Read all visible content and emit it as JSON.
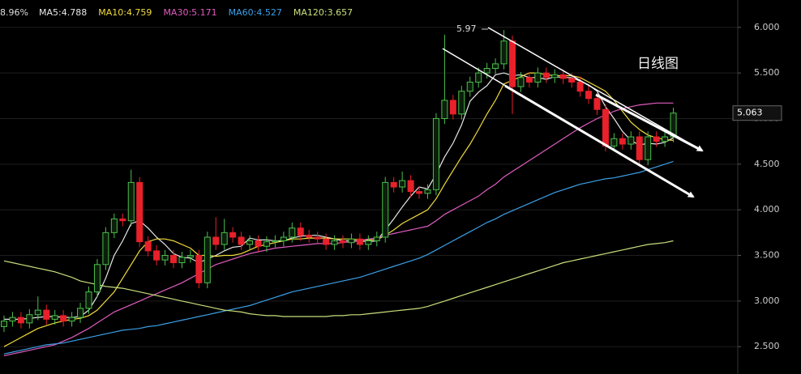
{
  "chart_data": {
    "type": "candlestick",
    "header_change": "8.96%",
    "annotation_high": "5.97",
    "title": "日线图",
    "last_price_label": "5.063",
    "ylim": [
      2.2,
      6.3
    ],
    "yticks": [
      {
        "value": 2.5,
        "label": "2.500"
      },
      {
        "value": 3,
        "label": "3.000"
      },
      {
        "value": 3.5,
        "label": "3.500"
      },
      {
        "value": 4,
        "label": "4.000"
      },
      {
        "value": 4.5,
        "label": "4.500"
      },
      {
        "value": 5,
        "label": "5.000"
      },
      {
        "value": 5.5,
        "label": "5.500"
      },
      {
        "value": 6,
        "label": "6.000"
      }
    ],
    "grid": true,
    "up_color": "#4cbf4c",
    "down_color": "#e8202a",
    "open": [
      2.72,
      2.78,
      2.82,
      2.76,
      2.85,
      2.9,
      2.8,
      2.84,
      2.78,
      2.82,
      2.92,
      3.1,
      3.4,
      3.75,
      3.9,
      3.88,
      4.3,
      3.65,
      3.55,
      3.45,
      3.5,
      3.42,
      3.48,
      3.5,
      3.2,
      3.7,
      3.62,
      3.75,
      3.7,
      3.62,
      3.66,
      3.6,
      3.65,
      3.66,
      3.7,
      3.8,
      3.72,
      3.7,
      3.68,
      3.62,
      3.66,
      3.64,
      3.68,
      3.62,
      3.66,
      3.7,
      4.3,
      4.25,
      4.32,
      4.2,
      4.18,
      4.22,
      5.0,
      5.2,
      5.05,
      5.3,
      5.4,
      5.5,
      5.55,
      5.6,
      5.85,
      5.35,
      5.45,
      5.4,
      5.5,
      5.45,
      5.48,
      5.44,
      5.4,
      5.3,
      5.22,
      5.1,
      4.7,
      4.78,
      4.72,
      4.8,
      4.55,
      4.8,
      4.75,
      4.8
    ],
    "high": [
      2.84,
      2.88,
      2.88,
      2.91,
      3.05,
      2.96,
      2.9,
      2.9,
      2.88,
      2.98,
      3.16,
      3.46,
      3.81,
      3.96,
      3.96,
      4.44,
      4.36,
      3.71,
      3.61,
      3.56,
      3.56,
      3.54,
      3.56,
      3.56,
      3.76,
      3.92,
      3.9,
      3.81,
      3.76,
      3.72,
      3.72,
      3.71,
      3.72,
      3.76,
      3.86,
      3.86,
      3.78,
      3.76,
      3.74,
      3.72,
      3.72,
      3.74,
      3.74,
      3.72,
      3.76,
      4.36,
      4.36,
      4.42,
      4.38,
      4.26,
      4.28,
      5.06,
      5.92,
      5.26,
      5.36,
      5.46,
      5.56,
      5.61,
      5.66,
      5.97,
      5.91,
      5.51,
      5.51,
      5.56,
      5.56,
      5.54,
      5.54,
      5.5,
      5.46,
      5.36,
      5.28,
      5.16,
      4.84,
      4.84,
      4.86,
      4.86,
      4.86,
      4.86,
      4.86,
      5.12
    ],
    "low": [
      2.66,
      2.72,
      2.7,
      2.7,
      2.79,
      2.74,
      2.74,
      2.72,
      2.72,
      2.76,
      2.86,
      3.04,
      3.34,
      3.69,
      3.82,
      3.82,
      3.59,
      3.49,
      3.39,
      3.39,
      3.36,
      3.36,
      3.42,
      3.14,
      3.14,
      3.56,
      3.56,
      3.64,
      3.56,
      3.56,
      3.54,
      3.54,
      3.59,
      3.6,
      3.64,
      3.66,
      3.64,
      3.62,
      3.56,
      3.56,
      3.58,
      3.58,
      3.56,
      3.56,
      3.6,
      3.64,
      4.19,
      4.19,
      4.14,
      4.12,
      4.12,
      4.16,
      4.94,
      4.99,
      4.99,
      5.24,
      5.34,
      5.44,
      5.49,
      5.54,
      5.05,
      5.29,
      5.34,
      5.34,
      5.39,
      5.39,
      5.38,
      5.34,
      5.24,
      5.16,
      5.04,
      4.64,
      4.64,
      4.66,
      4.66,
      4.49,
      4.49,
      4.69,
      4.69,
      4.74
    ],
    "close": [
      2.78,
      2.82,
      2.76,
      2.85,
      2.9,
      2.8,
      2.84,
      2.78,
      2.82,
      2.92,
      3.1,
      3.4,
      3.75,
      3.9,
      3.88,
      4.3,
      3.65,
      3.55,
      3.45,
      3.5,
      3.42,
      3.48,
      3.5,
      3.2,
      3.7,
      3.62,
      3.75,
      3.7,
      3.62,
      3.66,
      3.6,
      3.65,
      3.66,
      3.7,
      3.8,
      3.72,
      3.7,
      3.68,
      3.62,
      3.66,
      3.64,
      3.68,
      3.62,
      3.66,
      3.7,
      4.3,
      4.25,
      4.32,
      4.2,
      4.18,
      4.22,
      5.0,
      5.2,
      5.05,
      5.3,
      5.4,
      5.5,
      5.55,
      5.6,
      5.85,
      5.35,
      5.45,
      5.4,
      5.5,
      5.45,
      5.48,
      5.44,
      5.4,
      5.3,
      5.22,
      5.1,
      4.7,
      4.78,
      4.72,
      4.8,
      4.55,
      4.8,
      4.75,
      4.8,
      5.06
    ],
    "series": [
      {
        "name": "MA5:4.788",
        "color": "#e8e8e8",
        "values": [
          2.8,
          2.8,
          2.8,
          2.81,
          2.82,
          2.83,
          2.83,
          2.82,
          2.82,
          2.83,
          2.9,
          3.05,
          3.25,
          3.5,
          3.66,
          3.85,
          3.88,
          3.8,
          3.7,
          3.62,
          3.52,
          3.48,
          3.47,
          3.42,
          3.46,
          3.5,
          3.55,
          3.59,
          3.6,
          3.69,
          3.67,
          3.67,
          3.66,
          3.66,
          3.69,
          3.71,
          3.72,
          3.72,
          3.7,
          3.68,
          3.66,
          3.66,
          3.66,
          3.65,
          3.66,
          3.78,
          3.9,
          4.03,
          4.15,
          4.25,
          4.23,
          4.39,
          4.58,
          4.73,
          4.93,
          5.19,
          5.29,
          5.36,
          5.48,
          5.5,
          5.47,
          5.48,
          5.45,
          5.45,
          5.43,
          5.46,
          5.45,
          5.45,
          5.41,
          5.37,
          5.3,
          5.13,
          5.0,
          4.86,
          4.76,
          4.71,
          4.73,
          4.72,
          4.74,
          4.79
        ]
      },
      {
        "name": "MA10:4.759",
        "color": "#f2dc3c",
        "values": [
          2.5,
          2.55,
          2.6,
          2.65,
          2.7,
          2.73,
          2.76,
          2.78,
          2.8,
          2.81,
          2.84,
          2.9,
          3.0,
          3.1,
          3.25,
          3.4,
          3.55,
          3.65,
          3.68,
          3.68,
          3.66,
          3.62,
          3.58,
          3.5,
          3.5,
          3.49,
          3.5,
          3.5,
          3.52,
          3.56,
          3.6,
          3.62,
          3.64,
          3.66,
          3.68,
          3.68,
          3.69,
          3.69,
          3.69,
          3.68,
          3.68,
          3.68,
          3.67,
          3.67,
          3.67,
          3.72,
          3.78,
          3.85,
          3.9,
          3.95,
          4.0,
          4.12,
          4.28,
          4.43,
          4.58,
          4.72,
          4.88,
          5.05,
          5.2,
          5.38,
          5.42,
          5.46,
          5.5,
          5.5,
          5.48,
          5.47,
          5.47,
          5.47,
          5.45,
          5.4,
          5.35,
          5.3,
          5.2,
          5.08,
          4.96,
          4.88,
          4.82,
          4.79,
          4.77,
          4.76
        ]
      },
      {
        "name": "MA30:5.171",
        "color": "#e05cc0",
        "values": [
          2.4,
          2.42,
          2.44,
          2.46,
          2.48,
          2.5,
          2.52,
          2.56,
          2.6,
          2.65,
          2.7,
          2.76,
          2.82,
          2.88,
          2.92,
          2.96,
          3.0,
          3.04,
          3.08,
          3.12,
          3.16,
          3.2,
          3.25,
          3.3,
          3.35,
          3.4,
          3.43,
          3.46,
          3.49,
          3.52,
          3.54,
          3.56,
          3.58,
          3.59,
          3.6,
          3.61,
          3.62,
          3.63,
          3.63,
          3.63,
          3.64,
          3.65,
          3.66,
          3.68,
          3.69,
          3.72,
          3.74,
          3.76,
          3.78,
          3.8,
          3.82,
          3.88,
          3.95,
          4.0,
          4.05,
          4.1,
          4.15,
          4.22,
          4.28,
          4.36,
          4.42,
          4.48,
          4.54,
          4.6,
          4.66,
          4.72,
          4.78,
          4.84,
          4.9,
          4.95,
          5.0,
          5.04,
          5.08,
          5.11,
          5.13,
          5.15,
          5.16,
          5.17,
          5.17,
          5.17
        ]
      },
      {
        "name": "MA60:4.527",
        "color": "#3ca0e6",
        "values": [
          2.42,
          2.44,
          2.46,
          2.48,
          2.5,
          2.52,
          2.53,
          2.54,
          2.56,
          2.58,
          2.6,
          2.62,
          2.64,
          2.66,
          2.68,
          2.69,
          2.7,
          2.72,
          2.73,
          2.75,
          2.77,
          2.79,
          2.81,
          2.83,
          2.85,
          2.87,
          2.89,
          2.91,
          2.93,
          2.95,
          2.98,
          3.01,
          3.04,
          3.07,
          3.1,
          3.12,
          3.14,
          3.16,
          3.18,
          3.2,
          3.22,
          3.24,
          3.26,
          3.29,
          3.32,
          3.35,
          3.38,
          3.41,
          3.44,
          3.47,
          3.51,
          3.56,
          3.61,
          3.66,
          3.71,
          3.76,
          3.81,
          3.86,
          3.9,
          3.95,
          3.99,
          4.03,
          4.07,
          4.11,
          4.15,
          4.19,
          4.22,
          4.25,
          4.28,
          4.3,
          4.32,
          4.34,
          4.35,
          4.37,
          4.39,
          4.41,
          4.44,
          4.47,
          4.5,
          4.53
        ]
      },
      {
        "name": "MA120:3.657",
        "color": "#c8e07c",
        "values": [
          3.44,
          3.42,
          3.4,
          3.38,
          3.36,
          3.34,
          3.32,
          3.29,
          3.26,
          3.22,
          3.2,
          3.18,
          3.16,
          3.15,
          3.14,
          3.12,
          3.1,
          3.08,
          3.06,
          3.04,
          3.02,
          3.0,
          2.98,
          2.96,
          2.94,
          2.92,
          2.9,
          2.89,
          2.88,
          2.86,
          2.85,
          2.84,
          2.84,
          2.83,
          2.83,
          2.83,
          2.83,
          2.83,
          2.83,
          2.84,
          2.84,
          2.85,
          2.85,
          2.86,
          2.87,
          2.88,
          2.89,
          2.9,
          2.91,
          2.92,
          2.94,
          2.97,
          3.0,
          3.03,
          3.06,
          3.09,
          3.12,
          3.15,
          3.18,
          3.21,
          3.24,
          3.27,
          3.3,
          3.33,
          3.36,
          3.39,
          3.42,
          3.44,
          3.46,
          3.48,
          3.5,
          3.52,
          3.54,
          3.56,
          3.58,
          3.6,
          3.62,
          3.63,
          3.64,
          3.66
        ]
      }
    ]
  }
}
